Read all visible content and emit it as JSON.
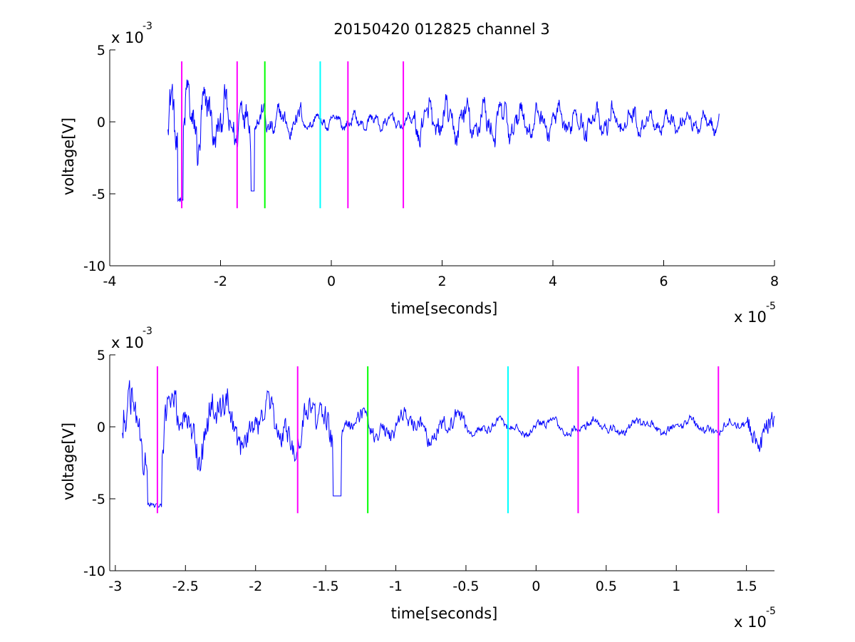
{
  "chart_data": {
    "type": "line",
    "title": "20150420 012825 channel 3",
    "background": "#ffffff",
    "signal_color": "#0000ff",
    "panels": [
      {
        "id": "top",
        "xlabel": "time[seconds]",
        "ylabel": "voltage[V]",
        "x_multiplier_label": "x 10",
        "x_multiplier_exp": "-5",
        "y_multiplier_label": "x 10",
        "y_multiplier_exp": "-3",
        "xlim": [
          -4,
          8
        ],
        "ylim": [
          -10,
          5
        ],
        "xticks": [
          -4,
          -2,
          0,
          2,
          4,
          6,
          8
        ],
        "xtick_labels": [
          "-4",
          "-2",
          "0",
          "2",
          "4",
          "6",
          "8"
        ],
        "yticks": [
          -10,
          -5,
          0,
          5
        ],
        "ytick_labels": [
          "-10",
          "-5",
          "0",
          "5"
        ],
        "signal_range": [
          -2.95,
          7.0
        ],
        "grid": false,
        "markers": [
          {
            "x": -2.7,
            "ymin": -6,
            "ymax": 4.2,
            "color": "#ff00ff"
          },
          {
            "x": -1.7,
            "ymin": -6,
            "ymax": 4.2,
            "color": "#ff00ff"
          },
          {
            "x": -1.2,
            "ymin": -6,
            "ymax": 4.2,
            "color": "#00ff00"
          },
          {
            "x": -0.2,
            "ymin": -6,
            "ymax": 4.2,
            "color": "#00ffff"
          },
          {
            "x": 0.3,
            "ymin": -6,
            "ymax": 4.2,
            "color": "#ff00ff"
          },
          {
            "x": 1.3,
            "ymin": -6,
            "ymax": 4.2,
            "color": "#ff00ff"
          }
        ]
      },
      {
        "id": "bottom",
        "xlabel": "time[seconds]",
        "ylabel": "voltage[V]",
        "x_multiplier_label": "x 10",
        "x_multiplier_exp": "-5",
        "y_multiplier_label": "x 10",
        "y_multiplier_exp": "-3",
        "xlim": [
          -3.04,
          1.7
        ],
        "ylim": [
          -10,
          5
        ],
        "xticks": [
          -3,
          -2.5,
          -2,
          -1.5,
          -1,
          -0.5,
          0,
          0.5,
          1,
          1.5
        ],
        "xtick_labels": [
          "-3",
          "-2.5",
          "-2",
          "-1.5",
          "-1",
          "-0.5",
          "0",
          "0.5",
          "1",
          "1.5"
        ],
        "yticks": [
          -10,
          -5,
          0,
          5
        ],
        "ytick_labels": [
          "-10",
          "-5",
          "0",
          "5"
        ],
        "signal_range": [
          -2.95,
          1.7
        ],
        "grid": false,
        "markers": [
          {
            "x": -2.7,
            "ymin": -6,
            "ymax": 4.2,
            "color": "#ff00ff"
          },
          {
            "x": -1.7,
            "ymin": -6,
            "ymax": 4.2,
            "color": "#ff00ff"
          },
          {
            "x": -1.2,
            "ymin": -6,
            "ymax": 4.2,
            "color": "#00ff00"
          },
          {
            "x": -0.2,
            "ymin": -6,
            "ymax": 4.2,
            "color": "#00ffff"
          },
          {
            "x": 0.3,
            "ymin": -6,
            "ymax": 4.2,
            "color": "#ff00ff"
          },
          {
            "x": 1.3,
            "ymin": -6,
            "ymax": 4.2,
            "color": "#ff00ff"
          }
        ]
      }
    ]
  }
}
